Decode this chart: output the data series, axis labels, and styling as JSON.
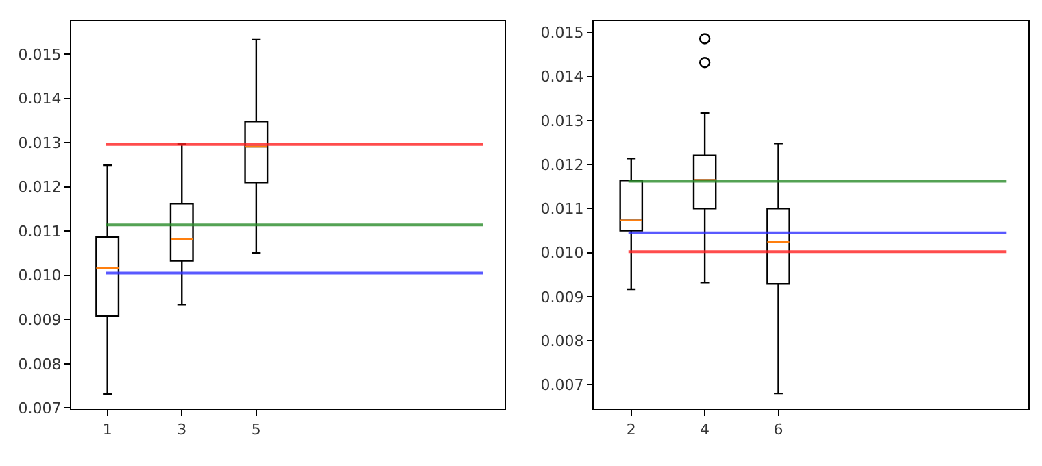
{
  "chart_data": [
    {
      "type": "box",
      "x": [
        1,
        3,
        5
      ],
      "xlim": [
        0.03,
        11.67
      ],
      "xticks": [
        1,
        3,
        5
      ],
      "ylim": [
        0.00697,
        0.01574
      ],
      "yticks": [
        0.007,
        0.008,
        0.009,
        {
          "value": 0.01,
          "label": "0.010"
        },
        0.011,
        0.012,
        0.013,
        0.014,
        0.015
      ],
      "color": "#000000",
      "boxes": [
        {
          "low": 0.00732,
          "q1": 0.00908,
          "median": 0.01017,
          "q3": 0.01086,
          "high": 0.01249
        },
        {
          "low": 0.00934,
          "q1": 0.01033,
          "median": 0.01082,
          "q3": 0.01162,
          "high": 0.01297
        },
        {
          "low": 0.01051,
          "q1": 0.0121,
          "median": 0.01291,
          "q3": 0.01348,
          "high": 0.01533
        }
      ],
      "ref_lines": [
        {
          "axis": "y",
          "value": 0.01296,
          "color": "#ff2020"
        },
        {
          "axis": "y",
          "value": 0.01114,
          "color": "#2a8c2a"
        },
        {
          "axis": "y",
          "value": 0.01005,
          "color": "#3030ff"
        }
      ]
    },
    {
      "type": "box",
      "x": [
        2,
        4,
        6
      ],
      "xlim": [
        0.98,
        12.79
      ],
      "xticks": [
        2,
        4,
        6
      ],
      "ylim": [
        0.00644,
        0.01525
      ],
      "yticks": [
        0.007,
        0.008,
        0.009,
        {
          "value": 0.01,
          "label": "0.010"
        },
        0.011,
        0.012,
        0.013,
        0.014,
        0.015
      ],
      "color": "#000000",
      "boxes": [
        {
          "low": 0.00917,
          "q1": 0.0105,
          "median": 0.01073,
          "q3": 0.01164,
          "high": 0.01214
        },
        {
          "low": 0.00932,
          "q1": 0.011,
          "median": 0.01165,
          "q3": 0.01221,
          "high": 0.01317,
          "outliers": [
            0.01486,
            0.01432
          ]
        },
        {
          "low": 0.0068,
          "q1": 0.00929,
          "median": 0.01024,
          "q3": 0.011,
          "high": 0.01248
        }
      ],
      "ref_lines": [
        {
          "axis": "y",
          "value": 0.01162,
          "color": "#2a8c2a"
        },
        {
          "axis": "y",
          "value": 0.01045,
          "color": "#3030ff"
        },
        {
          "axis": "y",
          "value": 0.01002,
          "color": "#ff2020"
        }
      ]
    }
  ]
}
